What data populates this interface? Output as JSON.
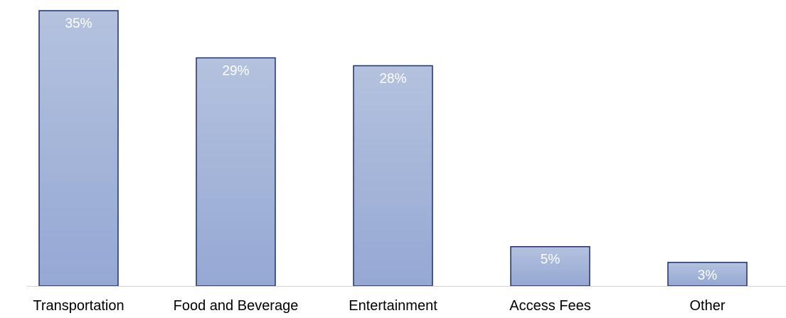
{
  "chart_data": {
    "type": "bar",
    "categories": [
      "Transportation",
      "Food and Beverage",
      "Entertainment",
      "Access Fees",
      "Other"
    ],
    "values": [
      35,
      29,
      28,
      5,
      3
    ],
    "data_labels": [
      "35%",
      "29%",
      "28%",
      "5%",
      "3%"
    ],
    "unit": "%",
    "title": "",
    "xlabel": "",
    "ylabel": "",
    "ylim": [
      0,
      35
    ],
    "grid": false,
    "legend": "none",
    "colors": {
      "bar_fill_top": "#b4c2de",
      "bar_fill_bottom": "#95a8d4",
      "bar_stroke": "#1f2f6b",
      "label_text": "#ffffff",
      "category_text": "#000000",
      "axis_line": "#d0d0d0"
    }
  }
}
